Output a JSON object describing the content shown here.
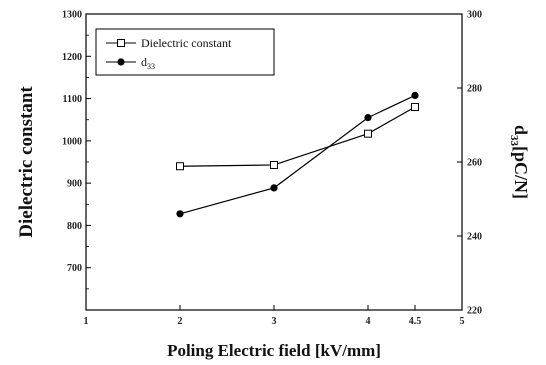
{
  "chart_data": {
    "type": "line",
    "xlabel": "Poling Electric field [kV/mm]",
    "ylabel_left": "Dielectric constant",
    "ylabel_right": "d33[pC/N]",
    "xlim": [
      1,
      5
    ],
    "xticks": [
      "1",
      "2",
      "3",
      "4",
      "4.5",
      "5"
    ],
    "xtick_values": [
      1,
      2,
      3,
      4,
      4.5,
      5
    ],
    "ylim_left": [
      600,
      1300
    ],
    "yticks_left": [
      "700",
      "800",
      "900",
      "1000",
      "1100",
      "1200",
      "1300"
    ],
    "ylim_right": [
      220,
      300
    ],
    "yticks_right": [
      "220",
      "240",
      "260",
      "280",
      "300"
    ],
    "grid": false,
    "legend_position": "top-left",
    "series": [
      {
        "name": "Dielectric constant",
        "axis": "left",
        "marker": "open-square",
        "color": "#000000",
        "x": [
          2,
          3,
          4,
          4.5
        ],
        "values": [
          940,
          943,
          1017,
          1080
        ]
      },
      {
        "name": "d33",
        "axis": "right",
        "marker": "filled-circle",
        "color": "#000000",
        "x": [
          2,
          3,
          4,
          4.5
        ],
        "values": [
          246,
          253,
          272,
          278
        ]
      }
    ]
  }
}
